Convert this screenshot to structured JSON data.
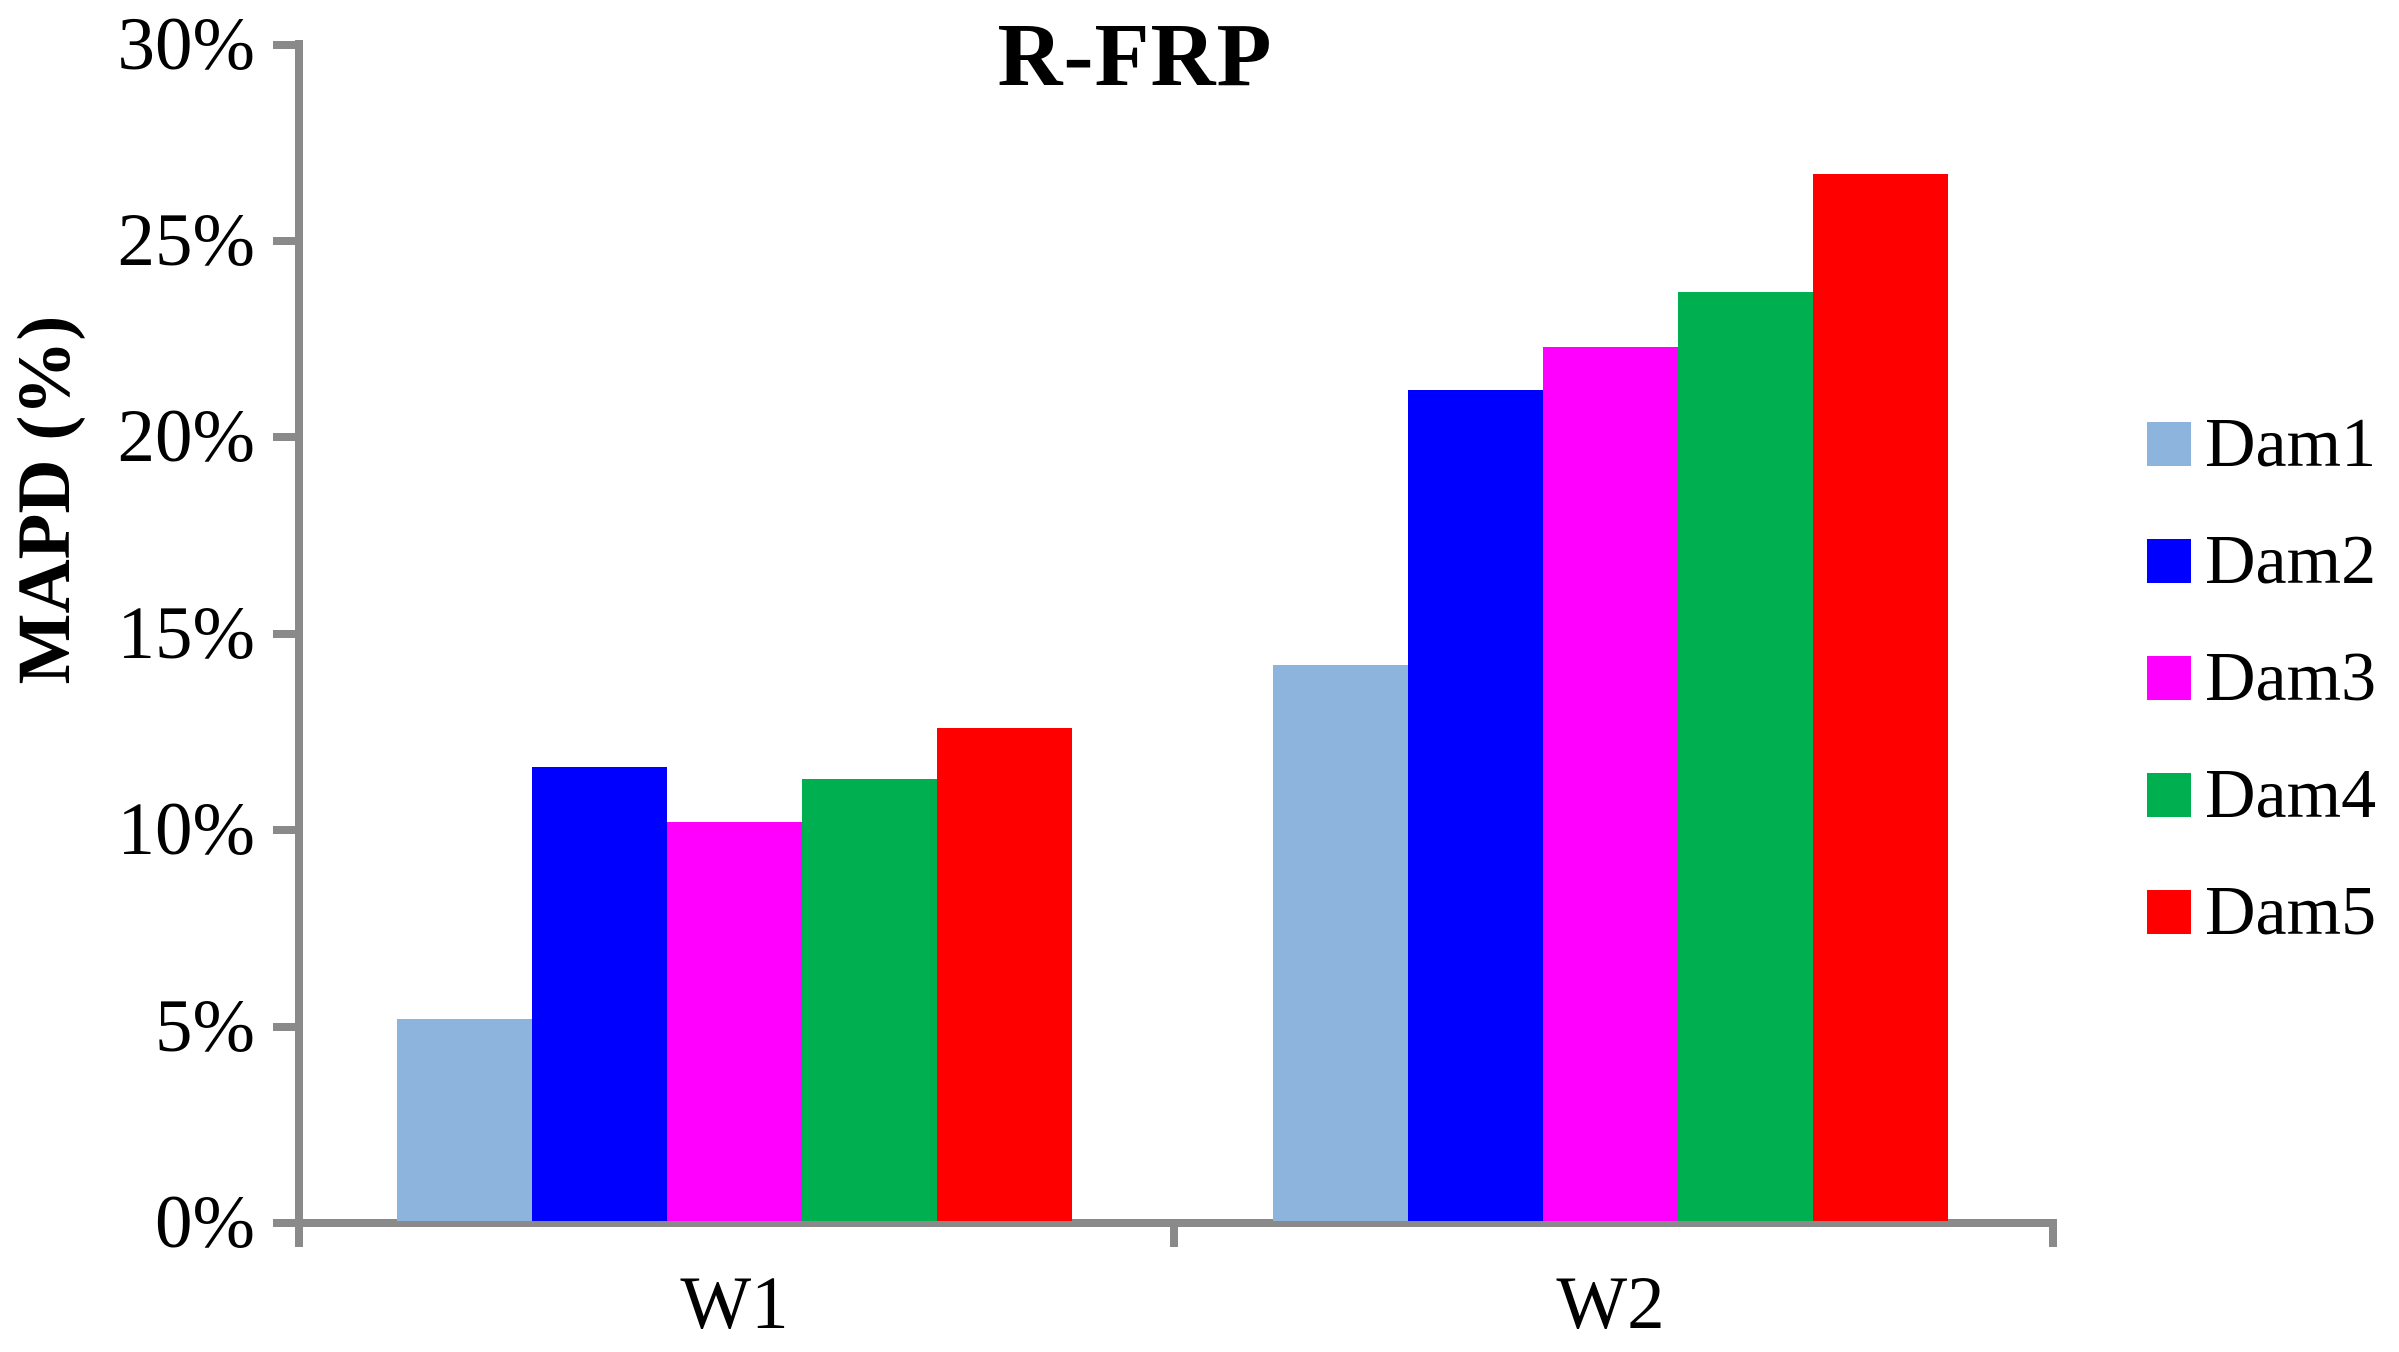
{
  "chart_data": {
    "type": "bar",
    "title": "R-FRP",
    "ylabel": "MAPD (%)",
    "xlabel": "",
    "categories": [
      "W1",
      "W2"
    ],
    "series": [
      {
        "name": "Dam1",
        "color": "#8DB4DC",
        "values": [
          5.2,
          14.2
        ]
      },
      {
        "name": "Dam2",
        "color": "#0000FF",
        "values": [
          11.6,
          21.2
        ]
      },
      {
        "name": "Dam3",
        "color": "#FF00FF",
        "values": [
          10.2,
          22.3
        ]
      },
      {
        "name": "Dam4",
        "color": "#00B050",
        "values": [
          11.3,
          23.7
        ]
      },
      {
        "name": "Dam5",
        "color": "#FF0000",
        "values": [
          12.6,
          26.7
        ]
      }
    ],
    "ylim": [
      0,
      30
    ],
    "ytick_step": 5,
    "ytick_labels": [
      "0%",
      "5%",
      "10%",
      "15%",
      "20%",
      "25%",
      "30%"
    ],
    "grid": false,
    "legend_position": "right"
  },
  "colors": {
    "axis": "#8A8A8A",
    "text": "#000000",
    "background": "#FFFFFF"
  }
}
